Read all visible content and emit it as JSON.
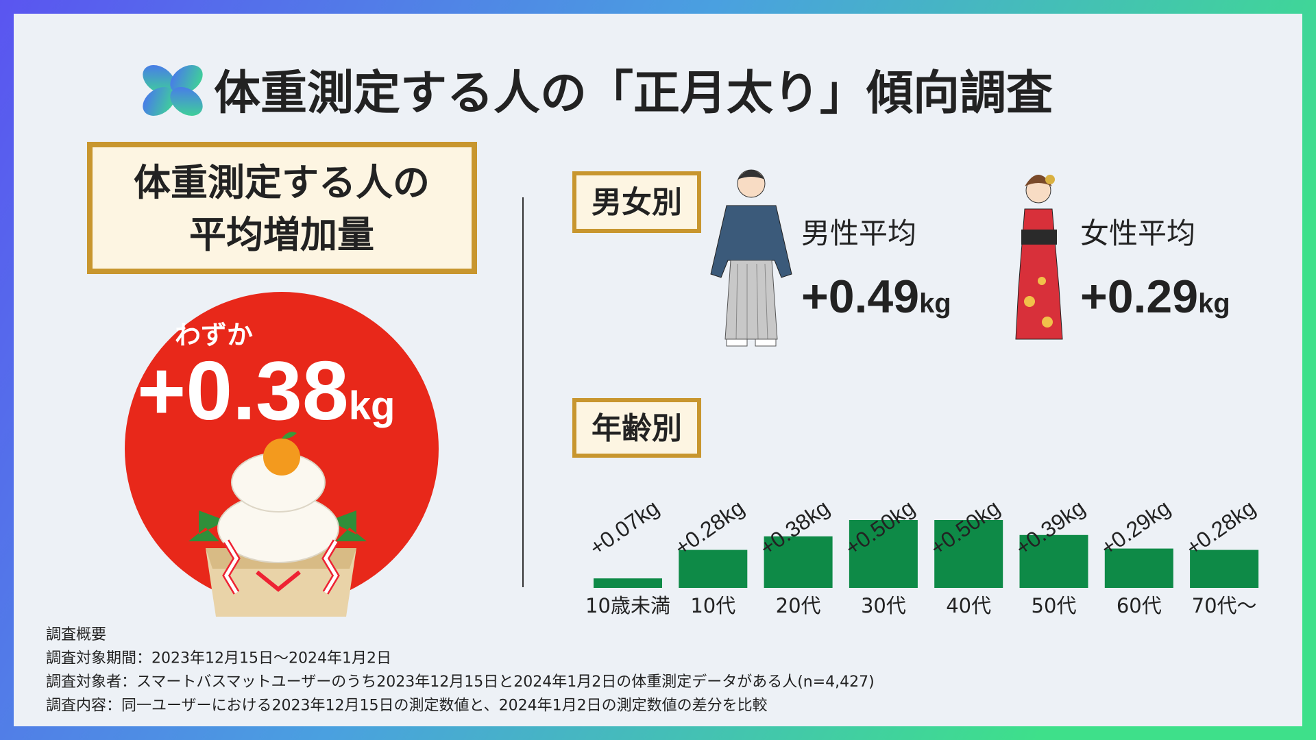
{
  "header": {
    "title": "体重測定する人の「正月太り」傾向調査"
  },
  "overall": {
    "heading_lines": [
      "体重測定する人の",
      "平均増加量"
    ],
    "prefix": "わずか",
    "value": "+0.38",
    "unit": "kg"
  },
  "gender": {
    "heading": "男女別",
    "items": [
      {
        "label": "男性平均",
        "value": "+0.49",
        "unit": "kg"
      },
      {
        "label": "女性平均",
        "value": "+0.29",
        "unit": "kg"
      }
    ]
  },
  "chart_data": {
    "type": "bar",
    "title": "年齢別",
    "categories": [
      "10歳未満",
      "10代",
      "20代",
      "30代",
      "40代",
      "50代",
      "60代",
      "70代〜"
    ],
    "values": [
      0.07,
      0.28,
      0.38,
      0.5,
      0.5,
      0.39,
      0.29,
      0.28
    ],
    "value_labels": [
      "+0.07kg",
      "+0.28kg",
      "+0.38kg",
      "+0.50kg",
      "+0.50kg",
      "+0.39kg",
      "+0.29kg",
      "+0.28kg"
    ],
    "color": "#0e8a47"
  },
  "footer": {
    "lines": [
      "調査概要",
      "調査対象期間：2023年12月15日～2024年1月2日",
      "調査対象者：スマートバスマットユーザーのうち2023年12月15日と2024年1月2日の体重測定データがある人(n=4,427)",
      "調査内容：同一ユーザーにおける2023年12月15日の測定数値と、2024年1月2日の測定数値の差分を比較"
    ]
  }
}
